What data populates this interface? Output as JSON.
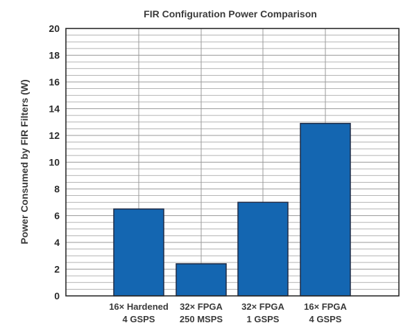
{
  "chart_data": {
    "type": "bar",
    "title": "FIR Configuration Power Comparison",
    "xlabel": "",
    "ylabel": "Power Consumed by FIR Filters (W)",
    "ylim": [
      0,
      20
    ],
    "yticks": [
      0,
      2,
      4,
      6,
      8,
      10,
      12,
      14,
      16,
      18,
      20
    ],
    "minor_grid_step": 0.5,
    "grid": true,
    "legend": "none",
    "categories": [
      [
        "16× Hardened",
        "4 GSPS"
      ],
      [
        "32× FPGA",
        "250 MSPS"
      ],
      [
        "32× FPGA",
        "1 GSPS"
      ],
      [
        "16× FPGA",
        "4 GSPS"
      ]
    ],
    "values": [
      6.5,
      2.4,
      7.0,
      12.9
    ],
    "colors": {
      "bar": "#1466b1",
      "bar_edge": "#1f2a44",
      "grid": "#9a9a9a",
      "axis": "#2a2a2a"
    }
  }
}
